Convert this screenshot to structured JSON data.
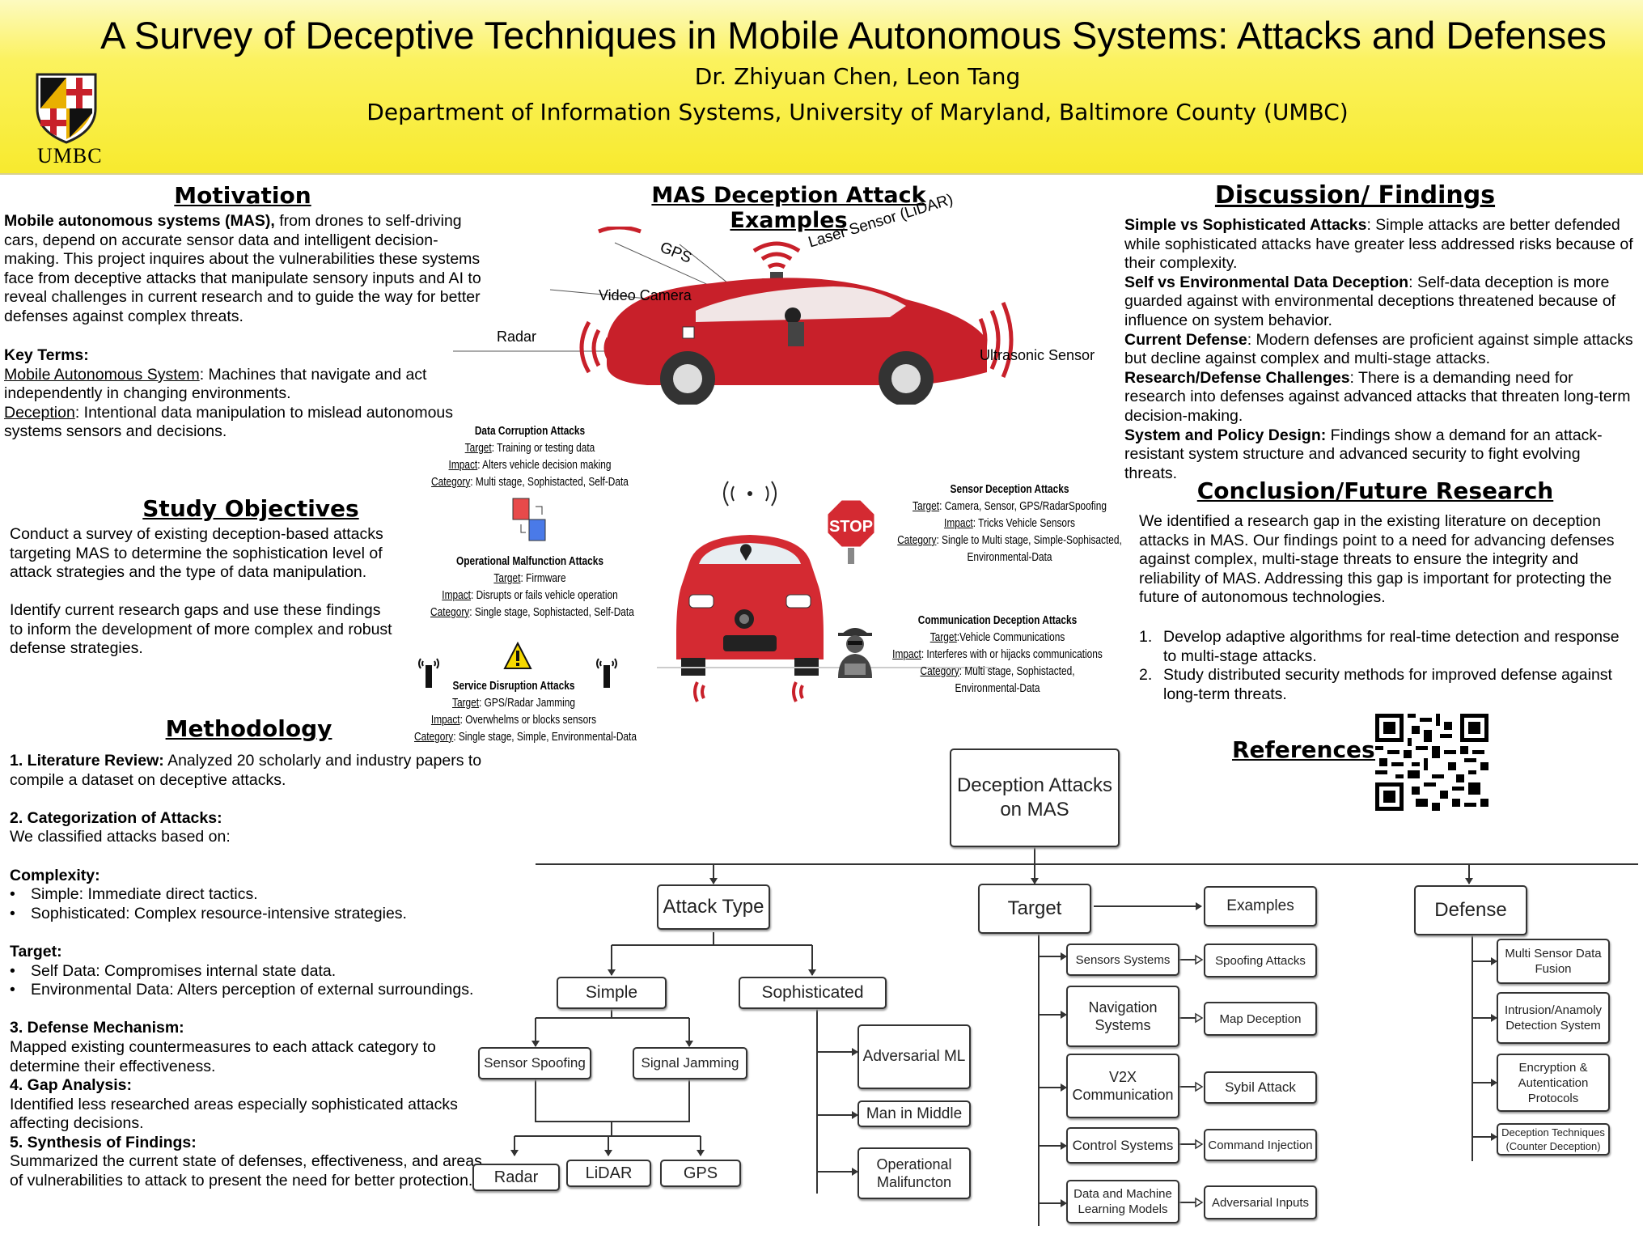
{
  "header": {
    "title": "A Survey of Deceptive Techniques in Mobile Autonomous Systems: Attacks and Defenses",
    "authors": "Dr. Zhiyuan Chen, Leon Tang",
    "department": "Department of Information Systems, University of Maryland, Baltimore County (UMBC)",
    "logo_text": "UMBC"
  },
  "motivation": {
    "heading": "Motivation",
    "lead": "Mobile autonomous systems (MAS),",
    "body": " from drones to self-driving cars, depend on accurate sensor data and intelligent decision-making. This project inquires about the vulnerabilities these systems face from deceptive attacks that manipulate sensory inputs and AI to reveal challenges in current research and to guide the way for better defenses against complex threats.",
    "key_terms_label": "Key Terms:",
    "term1": "Mobile Autonomous System",
    "term1_def": ": Machines that navigate and act independently in changing environments.",
    "term2": "Deception",
    "term2_def": ": Intentional data manipulation to mislead autonomous systems sensors and decisions."
  },
  "objectives": {
    "heading": "Study Objectives",
    "p1": "Conduct a survey of existing deception-based attacks targeting MAS to determine the sophistication level of attack strategies and the type of data manipulation.",
    "p2": "Identify current research gaps and use these findings to inform the development of more complex and robust defense strategies."
  },
  "methodology": {
    "heading": "Methodology",
    "s1_label": "1. Literature Review:",
    "s1_text": " Analyzed 20 scholarly and industry papers to compile a dataset on deceptive attacks.",
    "s2_label": "2. Categorization of Attacks:",
    "s2_text": "We classified attacks based on:",
    "complexity_label": "Complexity:",
    "complexity_items": [
      "Simple: Immediate direct tactics.",
      "Sophisticated: Complex resource-intensive strategies."
    ],
    "target_label": "Target:",
    "target_items": [
      "Self Data: Compromises internal state data.",
      "Environmental Data: Alters perception of external surroundings."
    ],
    "s3_label": "3. Defense Mechanism:",
    "s3_text": "Mapped existing countermeasures to each attack category to determine their effectiveness.",
    "s4_label": "4. Gap Analysis:",
    "s4_text": "Identified less researched areas especially sophisticated attacks affecting decisions.",
    "s5_label": "5. Synthesis of Findings:",
    "s5_text": "Summarized the current state of defenses, effectiveness, and areas of vulnerabilities to attack to present the need for better protection."
  },
  "examples": {
    "heading": "MAS Deception Attack Examples",
    "car_labels": {
      "gps": "GPS",
      "lidar": "Laser Sensor (LiDAR)",
      "video": "Video Camera",
      "radar": "Radar",
      "ultrasonic": "Ultrasonic Sensor"
    },
    "data_corruption": {
      "title": "Data Corruption Attacks",
      "target_k": "Target",
      "target_v": ": Training or testing data",
      "impact_k": "Impact",
      "impact_v": ": Alters vehicle decision making",
      "category_k": "Category",
      "category_v": ": Multi stage, Sophistacted, Self-Data"
    },
    "operational": {
      "title": "Operational Malfunction Attacks",
      "target_k": "Target",
      "target_v": ": Firmware",
      "impact_k": "Impact",
      "impact_v": ": Disrupts or fails vehicle operation",
      "category_k": "Category",
      "category_v": ": Single stage, Sophistacted, Self-Data"
    },
    "service": {
      "title": "Service Disruption Attacks",
      "target_k": "Target",
      "target_v": ": GPS/Radar Jamming",
      "impact_k": "Impact",
      "impact_v": ": Overwhelms or blocks sensors",
      "category_k": "Category",
      "category_v": ": Single stage, Simple, Environmental-Data"
    },
    "sensor": {
      "title": "Sensor Deception Attacks",
      "target_k": "Target",
      "target_v": ": Camera, Sensor, GPS/RadarSpoofing",
      "impact_k": "Impact",
      "impact_v": ": Tricks Vehicle Sensors",
      "category_k": "Category",
      "category_v": ": Single to Multi stage, Simple-Sophisacted,",
      "category_v2": "Environmental-Data"
    },
    "communication": {
      "title": "Communication Deception Attacks",
      "target_k": "Target",
      "target_v": ":Vehicle Communications",
      "impact_k": "Impact",
      "impact_v": ": Interferes with or hijacks  communications",
      "category_k": "Category",
      "category_v": ": Multi stage, Sophistacted,",
      "category_v2": "Environmental-Data"
    },
    "stop_sign": "STOP"
  },
  "discussion": {
    "heading": "Discussion/ Findings",
    "items": [
      {
        "label": "Simple vs Sophisticated Attacks",
        "text": ": Simple attacks are better defended while sophisticated attacks have greater less addressed risks because of their complexity."
      },
      {
        "label": "Self vs Environmental Data Deception",
        "text": ": Self-data deception is more guarded against with environmental deceptions threatened because of influence on system behavior."
      },
      {
        "label": "Current Defense",
        "text": ": Modern defenses are proficient against simple attacks but decline against complex and multi-stage attacks."
      },
      {
        "label": "Research/Defense Challenges",
        "text": ": There is a demanding need for research into defenses against advanced attacks that threaten long-term decision-making."
      },
      {
        "label": "System and Policy Design:",
        "text": " Findings show a demand for an attack-resistant system structure and advanced security to fight evolving threats."
      }
    ]
  },
  "conclusion": {
    "heading": "Conclusion/Future Research",
    "body": "We identified a research gap in the existing literature on deception attacks in MAS. Our findings point to a need for advancing defenses against complex, multi-stage threats to ensure the integrity and reliability of MAS. Addressing this gap is important for protecting the future of autonomous technologies.",
    "items": [
      {
        "num": "1.",
        "text": "Develop adaptive algorithms for real-time detection and response to multi-stage attacks."
      },
      {
        "num": "2.",
        "text": "Study distributed security methods for improved defense against long-term threats."
      }
    ]
  },
  "references": {
    "heading": "References:"
  },
  "diagram": {
    "root": "Deception Attacks on MAS",
    "attack_type": "Attack Type",
    "simple": "Simple",
    "sophisticated": "Sophisticated",
    "sensor_spoofing": "Sensor Spoofing",
    "signal_jamming": "Signal Jamming",
    "radar": "Radar",
    "lidar": "LiDAR",
    "gps": "GPS",
    "adversarial_ml": "Adversarial ML",
    "mitm": "Man in Middle",
    "op_malfunction": "Operational Malifuncton",
    "target": "Target",
    "examples": "Examples",
    "targets": [
      "Sensors Systems",
      "Navigation Systems",
      "V2X Communication",
      "Control Systems",
      "Data and Machine Learning Models"
    ],
    "example_items": [
      "Spoofing Attacks",
      "Map Deception",
      "Sybil Attack",
      "Command Injection",
      "Adversarial Inputs"
    ],
    "defense": "Defense",
    "defenses": [
      "Multi Sensor Data Fusion",
      "Intrusion/Anamoly Detection System",
      "Encryption & Autentication Protocols",
      "Deception Techniques (Counter Deception)"
    ]
  },
  "colors": {
    "header_yellow": "#f7ea2e",
    "car_red": "#c8202a",
    "wave_red": "#c8202a"
  }
}
